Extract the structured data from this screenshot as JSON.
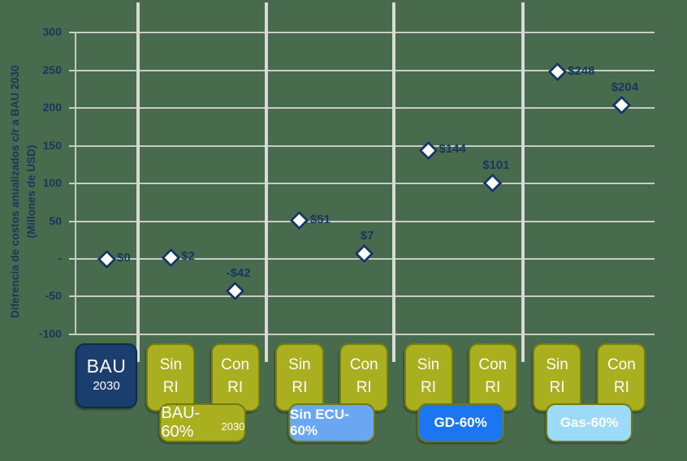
{
  "chart_data": {
    "type": "scatter",
    "title": "",
    "ylabel_line1": "Diferencia de costos  anualizados c/r a BAU 2030",
    "ylabel_line2": "(Millones de USD)",
    "ylim": [
      -100,
      300
    ],
    "grid": true,
    "yticks": [
      {
        "label": "300",
        "value": 300
      },
      {
        "label": "250",
        "value": 250
      },
      {
        "label": "200",
        "value": 200
      },
      {
        "label": "150",
        "value": 150
      },
      {
        "label": "100",
        "value": 100
      },
      {
        "label": "50",
        "value": 50
      },
      {
        "label": "-",
        "value": 0
      },
      {
        "label": "-50",
        "value": -50
      },
      {
        "label": "-100",
        "value": -100
      }
    ],
    "groups": [
      {
        "name": "BAU 2030",
        "points": [
          {
            "category": "BAU 2030",
            "value": 0,
            "label": "$0",
            "label_side": "right"
          }
        ]
      },
      {
        "name": "BAU-60% 2030",
        "points": [
          {
            "category": "Sin RI",
            "value": 2,
            "label": "$2",
            "label_side": "right"
          },
          {
            "category": "Con RI",
            "value": -42,
            "label": "-$42",
            "label_side": "above"
          }
        ]
      },
      {
        "name": "Sin ECU-60%",
        "points": [
          {
            "category": "Sin RI",
            "value": 51,
            "label": "$51",
            "label_side": "right"
          },
          {
            "category": "Con RI",
            "value": 7,
            "label": "$7",
            "label_side": "above"
          }
        ]
      },
      {
        "name": "GD-60%",
        "points": [
          {
            "category": "Sin RI",
            "value": 144,
            "label": "$144",
            "label_side": "right"
          },
          {
            "category": "Con RI",
            "value": 101,
            "label": "$101",
            "label_side": "above"
          }
        ]
      },
      {
        "name": "Gas-60%",
        "points": [
          {
            "category": "Sin RI",
            "value": 248,
            "label": "$248",
            "label_side": "right"
          },
          {
            "category": "Con RI",
            "value": 204,
            "label": "$204",
            "label_side": "above"
          }
        ]
      }
    ]
  },
  "category_buttons": {
    "bau_line1": "BAU",
    "bau_line2": "2030",
    "sin_line1": "Sin",
    "con_line1": "Con",
    "pair_line2": "RI"
  },
  "group_boxes": [
    {
      "text": "BAU-60%",
      "subscript": "2030",
      "fill": "#A9AF1E",
      "bold": false
    },
    {
      "text": "Sin ECU-60%",
      "subscript": "",
      "fill": "#69A7F3",
      "bold": true
    },
    {
      "text": "GD-60%",
      "subscript": "",
      "fill": "#1C76F2",
      "bold": true
    },
    {
      "text": "Gas-60%",
      "subscript": "",
      "fill": "#9BDAF8",
      "bold": true
    }
  ],
  "colors": {
    "background": "#486B4D",
    "navy": "#17375E",
    "bau_button": "#1A3E6E",
    "olive_button": "#A9AF1E",
    "gridline": "#C9CDC8",
    "separator": "#D8DAD5",
    "marker_fill": "#FFFFFF"
  }
}
